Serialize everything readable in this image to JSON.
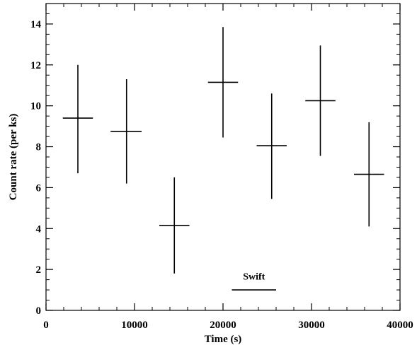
{
  "chart_data": {
    "type": "scatter",
    "title": "",
    "xlabel": "Time (s)",
    "ylabel": "Count rate (per ks)",
    "xlim": [
      0,
      40000
    ],
    "ylim": [
      0,
      15
    ],
    "grid": false,
    "x_ticks": [
      0,
      10000,
      20000,
      30000,
      40000
    ],
    "y_ticks": [
      0,
      2,
      4,
      6,
      8,
      10,
      12,
      14
    ],
    "x_tick_labels": [
      "0",
      "10000",
      "20000",
      "30000",
      "40000"
    ],
    "y_tick_labels": [
      "0",
      "2",
      "4",
      "6",
      "8",
      "10",
      "12",
      "14"
    ],
    "points": [
      {
        "x": 3600,
        "x_lo": 1900,
        "x_hi": 5300,
        "y": 9.4,
        "y_lo": 6.7,
        "y_hi": 12.0
      },
      {
        "x": 9100,
        "x_lo": 7300,
        "x_hi": 10800,
        "y": 8.75,
        "y_lo": 6.2,
        "y_hi": 11.3
      },
      {
        "x": 14500,
        "x_lo": 12800,
        "x_hi": 16200,
        "y": 4.15,
        "y_lo": 1.8,
        "y_hi": 6.5
      },
      {
        "x": 20000,
        "x_lo": 18300,
        "x_hi": 21700,
        "y": 11.15,
        "y_lo": 8.45,
        "y_hi": 13.85
      },
      {
        "x": 25500,
        "x_lo": 23800,
        "x_hi": 27200,
        "y": 8.05,
        "y_lo": 5.45,
        "y_hi": 10.6
      },
      {
        "x": 31000,
        "x_lo": 29300,
        "x_hi": 32700,
        "y": 10.25,
        "y_lo": 7.55,
        "y_hi": 12.95
      },
      {
        "x": 36500,
        "x_lo": 34800,
        "x_hi": 38200,
        "y": 6.65,
        "y_lo": 4.1,
        "y_hi": 9.2
      }
    ],
    "annotation": {
      "text": "Swift",
      "x": 23500,
      "y": 1.5,
      "bar_x": [
        21000,
        26000
      ],
      "bar_y": 1.0
    }
  }
}
